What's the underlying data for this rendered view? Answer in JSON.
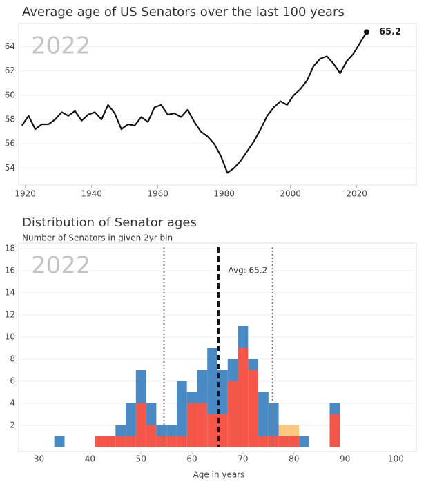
{
  "chart_data": [
    {
      "type": "line",
      "title": "Average age of US Senators over the last 100 years",
      "annotation": "2022",
      "color": "#111111",
      "x": [
        1919,
        1921,
        1923,
        1925,
        1927,
        1929,
        1931,
        1933,
        1935,
        1937,
        1939,
        1941,
        1943,
        1945,
        1947,
        1949,
        1951,
        1953,
        1955,
        1957,
        1959,
        1961,
        1963,
        1965,
        1967,
        1969,
        1971,
        1973,
        1975,
        1977,
        1979,
        1981,
        1983,
        1985,
        1987,
        1989,
        1991,
        1993,
        1995,
        1997,
        1999,
        2001,
        2003,
        2005,
        2007,
        2009,
        2011,
        2013,
        2015,
        2017,
        2019,
        2021,
        2023
      ],
      "values": [
        57.5,
        58.3,
        57.2,
        57.6,
        57.6,
        58.0,
        58.6,
        58.3,
        58.7,
        57.9,
        58.4,
        58.6,
        58.0,
        59.2,
        58.5,
        57.2,
        57.6,
        57.5,
        58.2,
        57.8,
        59.0,
        59.2,
        58.4,
        58.5,
        58.2,
        58.8,
        57.8,
        57.0,
        56.6,
        56.0,
        55.0,
        53.6,
        54.0,
        54.6,
        55.4,
        56.2,
        57.2,
        58.3,
        59.0,
        59.5,
        59.2,
        60.0,
        60.5,
        61.2,
        62.4,
        63.0,
        63.2,
        62.6,
        61.8,
        62.8,
        63.4,
        64.3,
        65.2
      ],
      "xlim": [
        1918,
        2038
      ],
      "xticks": [
        1920,
        1940,
        1960,
        1980,
        2000,
        2020
      ],
      "ylim": [
        52.6,
        65.9
      ],
      "yticks": [
        54,
        56,
        58,
        60,
        62,
        64
      ],
      "grid": true
    },
    {
      "type": "histogram",
      "title": "Distribution of Senator ages",
      "subtitle": "Number of Senators in given 2yr bin",
      "x_label": "Age in years",
      "annotation": "2022",
      "bins": [
        33,
        35,
        37,
        39,
        41,
        43,
        45,
        47,
        49,
        51,
        53,
        55,
        57,
        59,
        61,
        63,
        65,
        67,
        69,
        71,
        73,
        75,
        77,
        79,
        81,
        83,
        85,
        87,
        89
      ],
      "series": [
        {
          "color": "#f4574a",
          "values": [
            0,
            0,
            0,
            0,
            1,
            1,
            1,
            1,
            4,
            2,
            1,
            1,
            1,
            4,
            4,
            3,
            3,
            6,
            9,
            7,
            1,
            1,
            1,
            1,
            0,
            0,
            0,
            3
          ]
        },
        {
          "color": "#fcc77e",
          "values": [
            0,
            0,
            0,
            0,
            0,
            0,
            0,
            0,
            0,
            0,
            0,
            0,
            0,
            0,
            0,
            0,
            0,
            0,
            0,
            0,
            0,
            0,
            1,
            1,
            0,
            0,
            0,
            0
          ]
        },
        {
          "color": "#4a8ac4",
          "values": [
            1,
            0,
            0,
            0,
            0,
            0,
            1,
            3,
            3,
            2,
            1,
            1,
            5,
            1,
            3,
            6,
            4,
            2,
            2,
            1,
            4,
            3,
            0,
            0,
            1,
            0,
            0,
            1
          ]
        }
      ],
      "reference_lines": [
        {
          "value": 65.2,
          "label": "Avg: 65.2",
          "style": "dashed"
        },
        {
          "value": 54.5,
          "style": "dotted"
        },
        {
          "value": 75.8,
          "style": "dotted"
        }
      ],
      "xlim": [
        26,
        104
      ],
      "xticks": [
        30,
        40,
        50,
        60,
        70,
        80,
        90,
        100
      ],
      "ylim": [
        0,
        18.5
      ],
      "yticks": [
        2,
        4,
        6,
        8,
        10,
        12,
        14,
        16,
        18
      ],
      "grid": true
    }
  ]
}
